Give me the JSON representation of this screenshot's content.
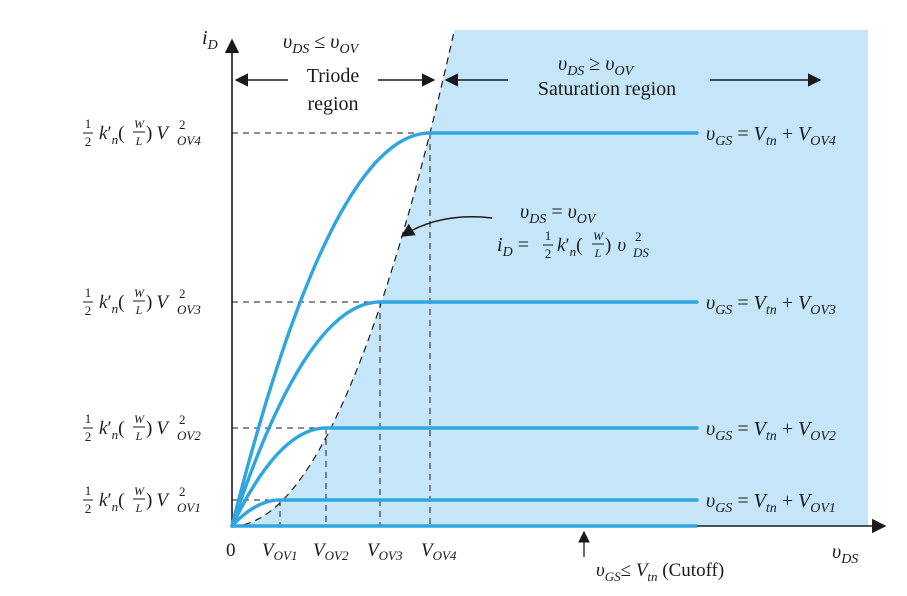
{
  "colors": {
    "saturation_fill": "#c4e6f8",
    "curve": "#2fa6df",
    "ink": "#1a1a1a"
  },
  "axes": {
    "y": {
      "sym": "i",
      "sub": "D"
    },
    "x": {
      "sym": "υ",
      "sub": "DS"
    },
    "origin": "0"
  },
  "regions": {
    "triode": {
      "cond_sym": "υ",
      "cond_sub": "DS",
      "cond_rel": " ≤ ",
      "cond_rsym": "υ",
      "cond_rsub": "OV",
      "line1": "Triode",
      "line2": "region"
    },
    "saturation": {
      "cond_sym": "υ",
      "cond_sub": "DS",
      "cond_rel": " ≥ ",
      "cond_rsym": "υ",
      "cond_rsub": "OV",
      "line1": "Saturation region"
    }
  },
  "y_labels": [
    {
      "half": "1",
      "half_den": "2",
      "k": "k",
      "kp": "′",
      "kn": "n",
      "pl": "(",
      "w": "W",
      "l": "L",
      "pr": ")",
      "v": "V",
      "sup": "2",
      "sub": "OV4"
    },
    {
      "half": "1",
      "half_den": "2",
      "k": "k",
      "kp": "′",
      "kn": "n",
      "pl": "(",
      "w": "W",
      "l": "L",
      "pr": ")",
      "v": "V",
      "sup": "2",
      "sub": "OV3"
    },
    {
      "half": "1",
      "half_den": "2",
      "k": "k",
      "kp": "′",
      "kn": "n",
      "pl": "(",
      "w": "W",
      "l": "L",
      "pr": ")",
      "v": "V",
      "sup": "2",
      "sub": "OV2"
    },
    {
      "half": "1",
      "half_den": "2",
      "k": "k",
      "kp": "′",
      "kn": "n",
      "pl": "(",
      "w": "W",
      "l": "L",
      "pr": ")",
      "v": "V",
      "sup": "2",
      "sub": "OV1"
    }
  ],
  "x_labels": [
    {
      "v": "V",
      "sub": "OV1"
    },
    {
      "v": "V",
      "sub": "OV2"
    },
    {
      "v": "V",
      "sub": "OV3"
    },
    {
      "v": "V",
      "sub": "OV4"
    }
  ],
  "curve_labels": [
    {
      "v": "υ",
      "s": "GS",
      "eq": " = ",
      "vt": "V",
      "ts": "tn",
      "plus": " + ",
      "vo": "V",
      "os": "OV4"
    },
    {
      "v": "υ",
      "s": "GS",
      "eq": " = ",
      "vt": "V",
      "ts": "tn",
      "plus": " + ",
      "vo": "V",
      "os": "OV3"
    },
    {
      "v": "υ",
      "s": "GS",
      "eq": " = ",
      "vt": "V",
      "ts": "tn",
      "plus": " + ",
      "vo": "V",
      "os": "OV2"
    },
    {
      "v": "υ",
      "s": "GS",
      "eq": " = ",
      "vt": "V",
      "ts": "tn",
      "plus": " + ",
      "vo": "V",
      "os": "OV1"
    }
  ],
  "boundary_annotation": {
    "l1_sym": "υ",
    "l1_sub": "DS",
    "l1_eq": " = ",
    "l1_rsym": "υ",
    "l1_rsub": "OV",
    "l2_sym": "i",
    "l2_sub": "D",
    "l2_eq": " = ",
    "half": "1",
    "half_den": "2",
    "k": "k",
    "kp": "′",
    "kn": "n",
    "pl": "(",
    "w": "W",
    "l": "L",
    "pr": ")",
    "v": "υ",
    "sup": "2",
    "vsub": "DS"
  },
  "cutoff": {
    "sym": "υ",
    "sub": "GS",
    "rel": "≤ ",
    "vt": "V",
    "tsub": "tn",
    "word": " (Cutoff)"
  }
}
